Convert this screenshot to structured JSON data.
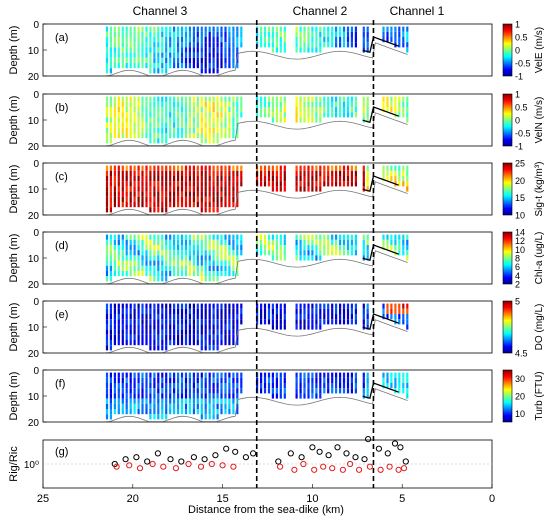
{
  "channel_labels": [
    "Channel 3",
    "Channel 2",
    "Channel 1"
  ],
  "chart_data": {
    "type": "heatmap",
    "xlabel": "Distance from the sea-dike (km)",
    "xlim": [
      25,
      0
    ],
    "x_ticks": [
      "25",
      "20",
      "15",
      "10",
      "5",
      "0"
    ],
    "x_tick_values": [
      25,
      20,
      15,
      10,
      5,
      0
    ],
    "channel_boundaries_km": [
      13.1,
      6.6
    ],
    "survey_extent_km": [
      21.5,
      4.6
    ],
    "panels": [
      {
        "tag": "(a)",
        "ylabel": "Depth (m)",
        "y_ticks": [
          "0",
          "10",
          "20"
        ],
        "ylim": [
          0,
          20
        ],
        "colorbar": {
          "label": "VelE (m/s)",
          "ticks": [
            "1",
            "0.5",
            "0",
            "-0.5",
            "-1"
          ],
          "range": [
            -1,
            1
          ]
        }
      },
      {
        "tag": "(b)",
        "ylabel": "Depth (m)",
        "y_ticks": [
          "0",
          "10",
          "20"
        ],
        "ylim": [
          0,
          20
        ],
        "colorbar": {
          "label": "VelN (m/s)",
          "ticks": [
            "1",
            "0.5",
            "0",
            "-0.5",
            "-1"
          ],
          "range": [
            -1,
            1
          ]
        }
      },
      {
        "tag": "(c)",
        "ylabel": "Depth (m)",
        "y_ticks": [
          "0",
          "10",
          "20"
        ],
        "ylim": [
          0,
          20
        ],
        "colorbar": {
          "label": "Sig-t (kg/m³)",
          "ticks": [
            "25",
            "20",
            "15",
            "10"
          ],
          "range": [
            10,
            25
          ]
        }
      },
      {
        "tag": "(d)",
        "ylabel": "Depth (m)",
        "y_ticks": [
          "0",
          "10",
          "20"
        ],
        "ylim": [
          0,
          20
        ],
        "colorbar": {
          "label": "Chl-a (ug/L)",
          "ticks": [
            "14",
            "12",
            "10",
            "8",
            "6",
            "4",
            "2"
          ],
          "range": [
            2,
            14
          ]
        }
      },
      {
        "tag": "(e)",
        "ylabel": "Depth (m)",
        "y_ticks": [
          "0",
          "10",
          "20"
        ],
        "ylim": [
          0,
          20
        ],
        "colorbar": {
          "label": "DO (mg/L)",
          "ticks": [
            "5",
            "4.5"
          ],
          "range": [
            4.5,
            5
          ]
        }
      },
      {
        "tag": "(f)",
        "ylabel": "Depth (m)",
        "y_ticks": [
          "0",
          "10",
          "20"
        ],
        "ylim": [
          0,
          20
        ],
        "colorbar": {
          "label": "Turb (FTU)",
          "ticks": [
            "30",
            "20",
            "10"
          ],
          "range": [
            5,
            35
          ]
        }
      }
    ],
    "ratio_panel": {
      "tag": "(g)",
      "ylabel": "Rig/Ric",
      "y_ticks": [
        "10⁰"
      ],
      "series": [
        {
          "marker": "open-circle",
          "color": "#000000",
          "points": [
            [
              21.0,
              1.0
            ],
            [
              20.4,
              1.2
            ],
            [
              19.8,
              1.3
            ],
            [
              19.2,
              1.1
            ],
            [
              18.6,
              1.5
            ],
            [
              17.9,
              1.2
            ],
            [
              17.3,
              1.1
            ],
            [
              16.6,
              1.3
            ],
            [
              16.0,
              1.2
            ],
            [
              15.4,
              1.4
            ],
            [
              14.8,
              1.8
            ],
            [
              14.3,
              1.6
            ],
            [
              13.7,
              1.3
            ],
            [
              13.3,
              1.5
            ],
            [
              11.9,
              1.1
            ],
            [
              11.2,
              1.5
            ],
            [
              10.6,
              1.3
            ],
            [
              10.0,
              1.9
            ],
            [
              9.6,
              1.6
            ],
            [
              9.1,
              1.4
            ],
            [
              8.6,
              1.9
            ],
            [
              8.1,
              1.5
            ],
            [
              7.6,
              1.3
            ],
            [
              7.1,
              1.2
            ],
            [
              6.9,
              2.6
            ],
            [
              6.3,
              1.8
            ],
            [
              5.8,
              1.5
            ],
            [
              5.4,
              2.2
            ],
            [
              5.1,
              1.9
            ],
            [
              4.8,
              1.1
            ]
          ]
        },
        {
          "marker": "open-circle",
          "color": "#e41a1c",
          "points": [
            [
              20.9,
              0.9
            ],
            [
              20.2,
              0.95
            ],
            [
              19.6,
              0.85
            ],
            [
              18.9,
              1.0
            ],
            [
              18.3,
              0.9
            ],
            [
              17.6,
              0.85
            ],
            [
              16.9,
              1.0
            ],
            [
              16.2,
              0.9
            ],
            [
              15.6,
              1.0
            ],
            [
              15.0,
              0.95
            ],
            [
              14.4,
              0.9
            ],
            [
              11.8,
              0.9
            ],
            [
              11.0,
              0.8
            ],
            [
              10.5,
              1.0
            ],
            [
              9.9,
              0.8
            ],
            [
              9.4,
              0.9
            ],
            [
              8.9,
              0.85
            ],
            [
              8.3,
              0.8
            ],
            [
              7.9,
              1.0
            ],
            [
              7.4,
              0.8
            ],
            [
              6.8,
              0.9
            ],
            [
              6.2,
              0.8
            ],
            [
              5.7,
              0.9
            ],
            [
              5.2,
              0.8
            ],
            [
              4.9,
              0.85
            ]
          ]
        }
      ]
    }
  }
}
